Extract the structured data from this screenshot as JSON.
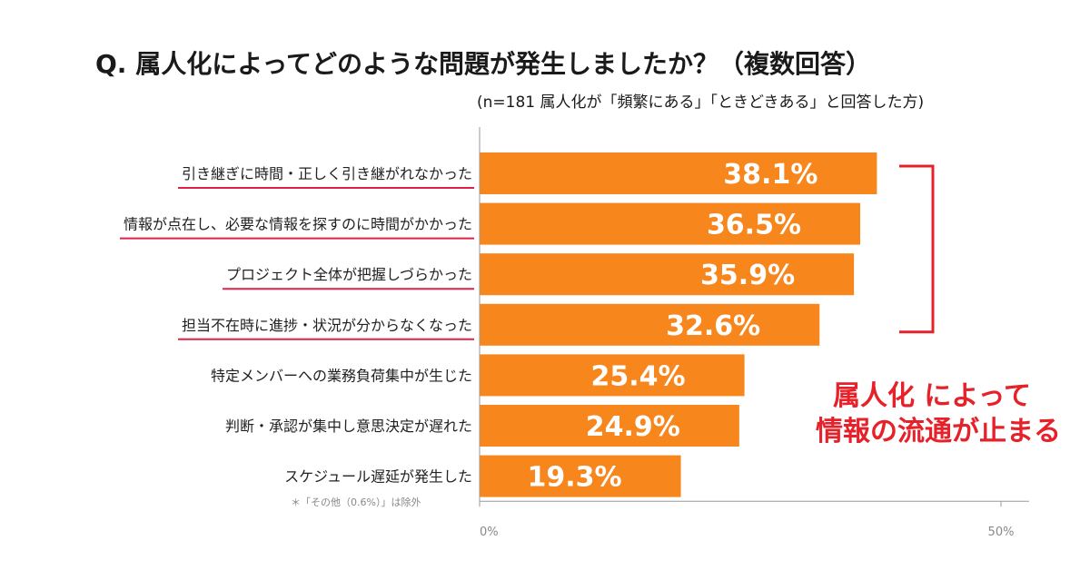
{
  "chart_data": {
    "type": "bar",
    "orientation": "horizontal",
    "title": "Q. 属人化によってどのような問題が発生しましたか？（複数回答）",
    "subtitle": "(n=181 属人化が「頻繁にある」「ときどきある」と回答した方)",
    "categories": [
      "引き継ぎに時間・正しく引き継がれなかった",
      "情報が点在し、必要な情報を探すのに時間がかかった",
      "プロジェクト全体が把握しづらかった",
      "担当不在時に進捗・状況が分からなくなった",
      "特定メンバーへの業務負荷集中が生じた",
      "判断・承認が集中し意思決定が遅れた",
      "スケジュール遅延が発生した"
    ],
    "values": [
      38.1,
      36.5,
      35.9,
      32.6,
      25.4,
      24.9,
      19.3
    ],
    "value_labels": [
      "38.1%",
      "36.5%",
      "35.9%",
      "32.6%",
      "25.4%",
      "24.9%",
      "19.3%"
    ],
    "underlined_categories": [
      0,
      1,
      2,
      3
    ],
    "xlim": [
      0,
      50
    ],
    "x_ticks": [
      "0%",
      "50%"
    ],
    "note": "＊「その他（0.6%）」は除外",
    "callout": [
      "属人化 によって",
      "情報の流通が止まる"
    ],
    "bracket_rows": [
      0,
      3
    ],
    "colors": {
      "bar": "#f7861c",
      "underline": "#e0214a",
      "bracket": "#e6212a",
      "callout": "#e6212a",
      "axis": "#999999"
    }
  }
}
